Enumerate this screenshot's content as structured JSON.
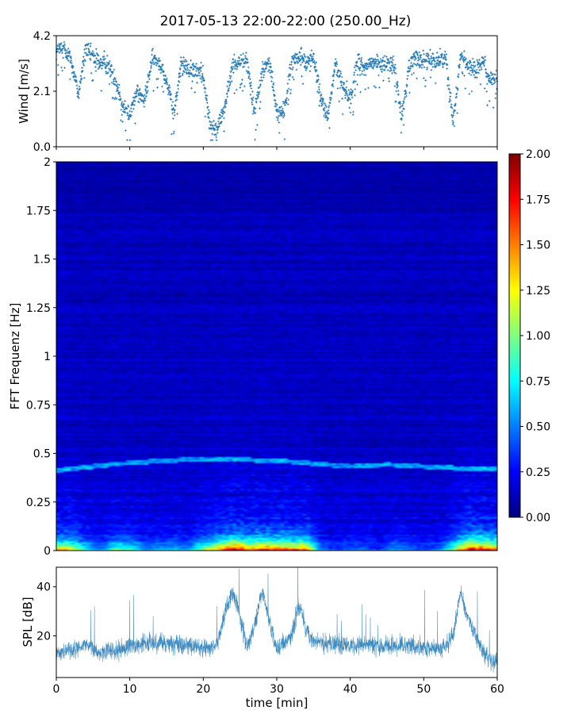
{
  "title": "2017-05-13 22:00-22:00 (250.00_Hz)",
  "colors": {
    "wind_points": "#1f77b4",
    "spl_line": "#1f77b4",
    "colormap": "jet"
  },
  "chart_data": [
    {
      "type": "scatter",
      "panel": "wind",
      "ylabel": "Wind [m/s]",
      "xlabel": "",
      "xlim": [
        0,
        60
      ],
      "ylim": [
        0.0,
        4.2
      ],
      "ytick_labels": [
        "0.0",
        "2.1",
        "4.2"
      ],
      "ytick_values": [
        0.0,
        2.1,
        4.2
      ],
      "xtick_values": [
        0,
        10,
        20,
        30,
        40,
        50,
        60
      ],
      "marker": "+",
      "series": [
        {
          "x": [
            0,
            1,
            2,
            3,
            4,
            5,
            6,
            7,
            8,
            9,
            10,
            11,
            12,
            13,
            14,
            15,
            16,
            17,
            18,
            19,
            20,
            21,
            22,
            23,
            24,
            25,
            26,
            27,
            28,
            29,
            30,
            31,
            32,
            33,
            34,
            35,
            36,
            37,
            38,
            39,
            40,
            41,
            42,
            43,
            44,
            45,
            46,
            47,
            48,
            49,
            50,
            51,
            52,
            53,
            54,
            55,
            56,
            57,
            58,
            59,
            60
          ],
          "y": [
            3.6,
            3.8,
            3.3,
            2.0,
            3.7,
            3.4,
            3.2,
            3.1,
            2.6,
            1.6,
            1.2,
            2.2,
            1.7,
            3.3,
            3.2,
            2.5,
            1.2,
            3.2,
            2.9,
            2.9,
            2.7,
            0.7,
            0.8,
            1.6,
            3.1,
            3.3,
            3.2,
            1.3,
            2.8,
            3.3,
            1.3,
            1.3,
            3.2,
            3.4,
            3.2,
            3.4,
            1.8,
            1.1,
            3.2,
            2.3,
            1.8,
            3.3,
            3.0,
            3.2,
            3.1,
            3.2,
            3.0,
            1.1,
            3.1,
            3.4,
            3.2,
            3.3,
            3.3,
            3.4,
            1.0,
            3.5,
            3.1,
            2.9,
            3.3,
            2.5,
            2.5
          ]
        }
      ]
    },
    {
      "type": "heatmap",
      "panel": "spectrogram",
      "ylabel": "FFT Frequenz [Hz]",
      "xlabel": "",
      "xlim": [
        0,
        60
      ],
      "ylim": [
        0,
        2
      ],
      "ytick_labels": [
        "0",
        "0.25",
        "0.5",
        "0.75",
        "1",
        "1.25",
        "1.5",
        "1.75",
        "2"
      ],
      "ytick_values": [
        0,
        0.25,
        0.5,
        0.75,
        1,
        1.25,
        1.5,
        1.75,
        2
      ],
      "colorbar": {
        "range": [
          0.0,
          2.0
        ],
        "tick_labels": [
          "0.00",
          "0.25",
          "0.50",
          "0.75",
          "1.00",
          "1.25",
          "1.50",
          "1.75",
          "2.00"
        ],
        "tick_values": [
          0.0,
          0.25,
          0.5,
          0.75,
          1.0,
          1.25,
          1.5,
          1.75,
          2.0
        ]
      },
      "background_level": 0.12,
      "low_freq_activity": {
        "x": [
          0,
          2,
          4,
          6,
          8,
          10,
          12,
          14,
          16,
          18,
          20,
          22,
          24,
          26,
          28,
          30,
          32,
          34,
          36,
          38,
          40,
          42,
          44,
          46,
          48,
          50,
          52,
          54,
          56,
          58,
          60
        ],
        "level": [
          1.2,
          1.1,
          0.6,
          0.3,
          0.8,
          0.7,
          0.4,
          0.4,
          0.5,
          0.4,
          0.9,
          1.2,
          1.7,
          1.4,
          1.5,
          1.5,
          1.4,
          1.4,
          0.3,
          0.2,
          0.3,
          0.3,
          0.2,
          0.4,
          0.3,
          0.2,
          0.3,
          0.8,
          1.6,
          1.6,
          1.3
        ]
      },
      "tonal_band": {
        "x": [
          0,
          10,
          20,
          30,
          40,
          45,
          50,
          55,
          60
        ],
        "freq": [
          0.41,
          0.45,
          0.47,
          0.46,
          0.43,
          0.44,
          0.43,
          0.42,
          0.42
        ],
        "level": 0.5
      }
    },
    {
      "type": "line",
      "panel": "spl",
      "ylabel": "SPL [dB]",
      "xlabel": "time [min]",
      "xlim": [
        0,
        60
      ],
      "ylim": [
        3,
        48
      ],
      "ytick_labels": [
        "20",
        "40"
      ],
      "ytick_values": [
        20,
        40
      ],
      "xtick_labels": [
        "0",
        "10",
        "20",
        "30",
        "40",
        "50",
        "60"
      ],
      "xtick_values": [
        0,
        10,
        20,
        30,
        40,
        50,
        60
      ],
      "series": [
        {
          "x": [
            0,
            2,
            4,
            6,
            8,
            10,
            12,
            14,
            16,
            18,
            20,
            21,
            22,
            23,
            24,
            25,
            26,
            27,
            28,
            29,
            30,
            31,
            32,
            33,
            34,
            35,
            36,
            38,
            40,
            42,
            44,
            46,
            48,
            50,
            52,
            53,
            54,
            55,
            56,
            57,
            58,
            59,
            60
          ],
          "y": [
            13,
            14,
            16,
            13,
            14,
            16,
            17,
            17,
            17,
            16,
            15,
            14,
            18,
            30,
            38,
            28,
            15,
            25,
            38,
            26,
            15,
            17,
            20,
            33,
            22,
            18,
            17,
            17,
            16,
            16,
            16,
            16,
            16,
            15,
            15,
            16,
            20,
            38,
            27,
            21,
            14,
            10,
            9
          ]
        }
      ]
    }
  ]
}
